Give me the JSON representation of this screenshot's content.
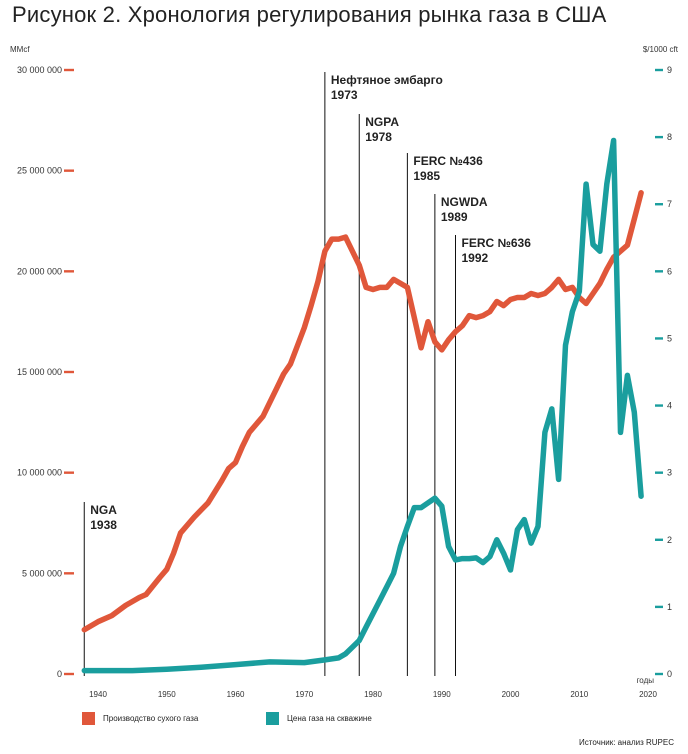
{
  "title": "Рисунок 2. Хронология регулирования рынка газа в США",
  "source": "Источник: анализ RUPEC",
  "colors": {
    "production": "#e0573a",
    "price": "#1a9e9e",
    "axis_text": "#333333",
    "event_line": "#111111"
  },
  "chart_data": {
    "type": "line",
    "title": "Рисунок 2. Хронология регулирования рынка газа в США",
    "xlabel": "годы",
    "ylabel_left": "MMcf",
    "ylabel_right": "$/1000 cft",
    "xlim": [
      1937,
      2021
    ],
    "ylim_left": [
      0,
      30000000
    ],
    "ylim_right": [
      0,
      9
    ],
    "x_ticks": [
      1940,
      1950,
      1960,
      1970,
      1980,
      1990,
      2000,
      2010,
      2020
    ],
    "left_ticks": [
      {
        "value": 0,
        "label": "0"
      },
      {
        "value": 5000000,
        "label": "5 000 000"
      },
      {
        "value": 10000000,
        "label": "10 000 000"
      },
      {
        "value": 15000000,
        "label": "15 000 000"
      },
      {
        "value": 20000000,
        "label": "20 000 000"
      },
      {
        "value": 25000000,
        "label": "25 000 000"
      },
      {
        "value": 30000000,
        "label": "30 000 000"
      }
    ],
    "right_ticks": [
      0,
      1,
      2,
      3,
      4,
      5,
      6,
      7,
      8,
      9
    ],
    "legend": [
      {
        "name": "Производство сухого газа",
        "color": "#e0573a"
      },
      {
        "name": "Цена газа на скважине",
        "color": "#1a9e9e"
      }
    ],
    "events": [
      {
        "year": 1938,
        "name": "NGA",
        "label_year": "1938"
      },
      {
        "year": 1973,
        "name": "Нефтяное эмбарго",
        "label_year": "1973"
      },
      {
        "year": 1978,
        "name": "NGPA",
        "label_year": "1978"
      },
      {
        "year": 1985,
        "name": "FERC №436",
        "label_year": "1985"
      },
      {
        "year": 1989,
        "name": "NGWDA",
        "label_year": "1989"
      },
      {
        "year": 1992,
        "name": "FERC №636",
        "label_year": "1992"
      }
    ],
    "series": [
      {
        "name": "Производство сухого газа",
        "axis": "left",
        "color": "#e0573a",
        "points": [
          [
            1938,
            2200000
          ],
          [
            1940,
            2600000
          ],
          [
            1942,
            2900000
          ],
          [
            1944,
            3400000
          ],
          [
            1946,
            3800000
          ],
          [
            1947,
            3950000
          ],
          [
            1949,
            4800000
          ],
          [
            1950,
            5200000
          ],
          [
            1951,
            6000000
          ],
          [
            1952,
            7000000
          ],
          [
            1954,
            7800000
          ],
          [
            1956,
            8500000
          ],
          [
            1958,
            9600000
          ],
          [
            1959,
            10200000
          ],
          [
            1960,
            10500000
          ],
          [
            1961,
            11300000
          ],
          [
            1962,
            12000000
          ],
          [
            1964,
            12800000
          ],
          [
            1966,
            14200000
          ],
          [
            1967,
            14900000
          ],
          [
            1968,
            15400000
          ],
          [
            1969,
            16300000
          ],
          [
            1970,
            17200000
          ],
          [
            1971,
            18300000
          ],
          [
            1972,
            19500000
          ],
          [
            1973,
            21000000
          ],
          [
            1974,
            21600000
          ],
          [
            1975,
            21600000
          ],
          [
            1976,
            21700000
          ],
          [
            1977,
            21000000
          ],
          [
            1978,
            20300000
          ],
          [
            1979,
            19200000
          ],
          [
            1980,
            19100000
          ],
          [
            1981,
            19200000
          ],
          [
            1982,
            19200000
          ],
          [
            1983,
            19600000
          ],
          [
            1984,
            19400000
          ],
          [
            1985,
            19200000
          ],
          [
            1986,
            17700000
          ],
          [
            1987,
            16200000
          ],
          [
            1988,
            17500000
          ],
          [
            1989,
            16500000
          ],
          [
            1990,
            16100000
          ],
          [
            1991,
            16600000
          ],
          [
            1992,
            17000000
          ],
          [
            1993,
            17300000
          ],
          [
            1994,
            17800000
          ],
          [
            1995,
            17700000
          ],
          [
            1996,
            17800000
          ],
          [
            1997,
            18000000
          ],
          [
            1998,
            18500000
          ],
          [
            1999,
            18300000
          ],
          [
            2000,
            18600000
          ],
          [
            2001,
            18700000
          ],
          [
            2002,
            18700000
          ],
          [
            2003,
            18900000
          ],
          [
            2004,
            18800000
          ],
          [
            2005,
            18900000
          ],
          [
            2006,
            19200000
          ],
          [
            2007,
            19600000
          ],
          [
            2008,
            19100000
          ],
          [
            2009,
            19200000
          ],
          [
            2010,
            18700000
          ],
          [
            2011,
            18400000
          ],
          [
            2012,
            18900000
          ],
          [
            2013,
            19400000
          ],
          [
            2014,
            20100000
          ],
          [
            2015,
            20700000
          ],
          [
            2016,
            21000000
          ],
          [
            2017,
            21300000
          ],
          [
            2018,
            22600000
          ],
          [
            2019,
            23900000
          ]
        ]
      },
      {
        "name": "Цена газа на скважине",
        "axis": "right",
        "color": "#1a9e9e",
        "points": [
          [
            1938,
            0.05
          ],
          [
            1945,
            0.05
          ],
          [
            1950,
            0.07
          ],
          [
            1955,
            0.1
          ],
          [
            1960,
            0.14
          ],
          [
            1965,
            0.18
          ],
          [
            1970,
            0.17
          ],
          [
            1973,
            0.21
          ],
          [
            1975,
            0.24
          ],
          [
            1976,
            0.3
          ],
          [
            1977,
            0.4
          ],
          [
            1978,
            0.5
          ],
          [
            1979,
            0.7
          ],
          [
            1980,
            0.9
          ],
          [
            1981,
            1.1
          ],
          [
            1982,
            1.3
          ],
          [
            1983,
            1.5
          ],
          [
            1984,
            1.9
          ],
          [
            1985,
            2.2
          ],
          [
            1986,
            2.48
          ],
          [
            1987,
            2.48
          ],
          [
            1988,
            2.55
          ],
          [
            1989,
            2.62
          ],
          [
            1990,
            2.5
          ],
          [
            1991,
            1.9
          ],
          [
            1992,
            1.7
          ],
          [
            1993,
            1.72
          ],
          [
            1994,
            1.72
          ],
          [
            1995,
            1.73
          ],
          [
            1996,
            1.66
          ],
          [
            1997,
            1.75
          ],
          [
            1998,
            2.0
          ],
          [
            1999,
            1.8
          ],
          [
            2000,
            1.55
          ],
          [
            2001,
            2.15
          ],
          [
            2002,
            2.3
          ],
          [
            2003,
            1.95
          ],
          [
            2004,
            2.2
          ],
          [
            2005,
            3.6
          ],
          [
            2006,
            3.95
          ],
          [
            2007,
            2.9
          ],
          [
            2008,
            4.9
          ],
          [
            2009,
            5.4
          ],
          [
            2010,
            5.7
          ],
          [
            2011,
            7.3
          ],
          [
            2012,
            6.4
          ],
          [
            2013,
            6.3
          ],
          [
            2014,
            7.3
          ],
          [
            2015,
            7.95
          ],
          [
            2016,
            3.6
          ],
          [
            2017,
            4.45
          ],
          [
            2018,
            3.9
          ],
          [
            2019,
            2.65
          ]
        ]
      }
    ]
  }
}
